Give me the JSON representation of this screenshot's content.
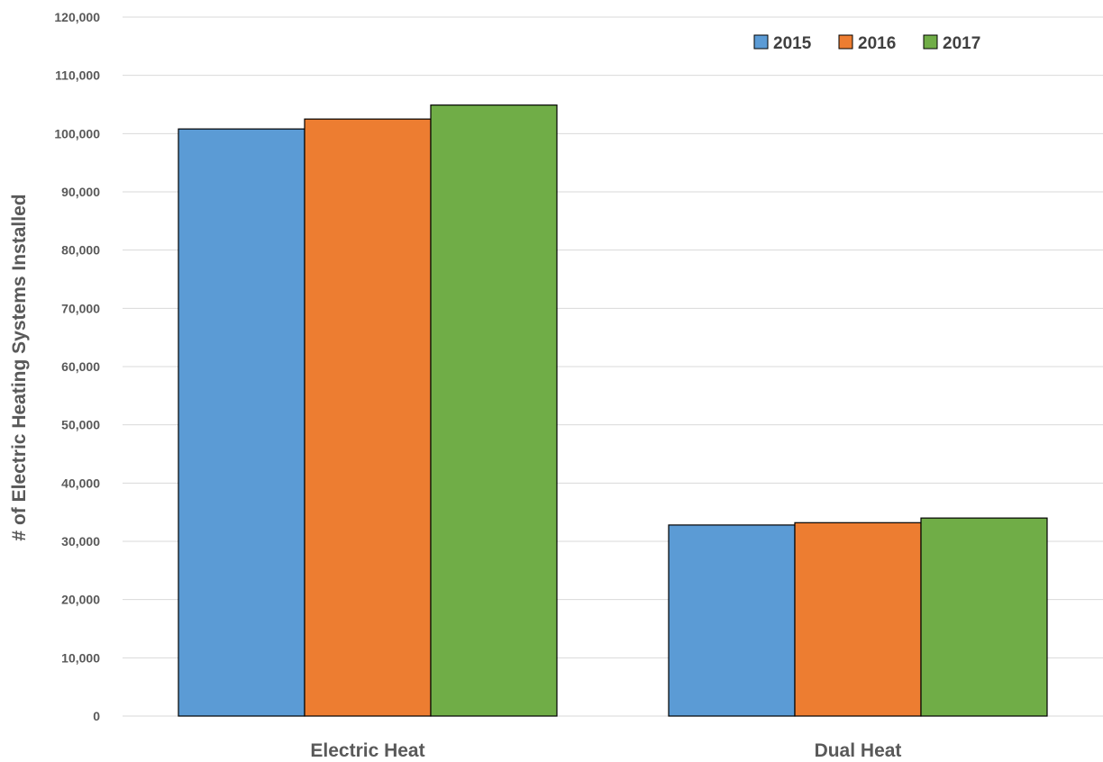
{
  "chart_data": {
    "type": "bar",
    "title": "",
    "xlabel": "",
    "ylabel": "# of Electric Heating Systems Installed",
    "categories": [
      "Electric Heat",
      "Dual Heat"
    ],
    "series": [
      {
        "name": "2015",
        "values": [
          100800,
          32800
        ],
        "color": "#5b9bd5"
      },
      {
        "name": "2016",
        "values": [
          102500,
          33200
        ],
        "color": "#ed7d31"
      },
      {
        "name": "2017",
        "values": [
          104900,
          34000
        ],
        "color": "#70ad47"
      }
    ],
    "ylim": [
      0,
      120000
    ],
    "yticks": [
      0,
      10000,
      20000,
      30000,
      40000,
      50000,
      60000,
      70000,
      80000,
      90000,
      100000,
      110000,
      120000
    ],
    "ytick_labels": [
      "0",
      "10,000",
      "20,000",
      "30,000",
      "40,000",
      "50,000",
      "60,000",
      "70,000",
      "80,000",
      "90,000",
      "100,000",
      "110,000",
      "120,000"
    ],
    "grid": true,
    "legend_position": "top-right",
    "gridline_color": "#d9d9d9",
    "bar_outline_color": "#000000"
  }
}
